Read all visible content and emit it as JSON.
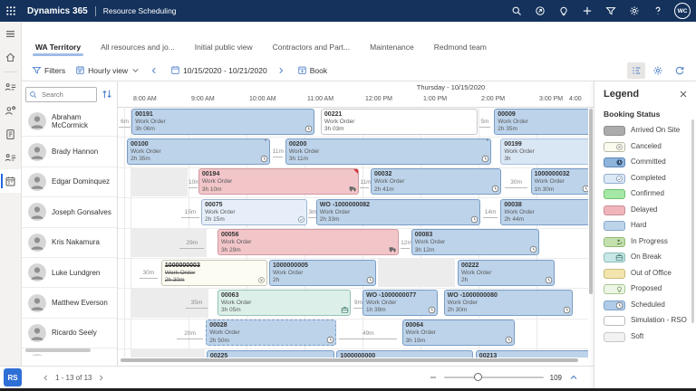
{
  "colors": {
    "topbar_bg": "#14325C",
    "accent_blue": "#4A7EC9",
    "tab_underline": "#9FBCE8",
    "rail_active": "#2266E3",
    "rs_badge_bg": "#2E6FD6",
    "delayed_corner": "#D13438",
    "gridline": "#E9E9E9"
  },
  "topbar": {
    "brand": "Dynamics 365",
    "app": "Resource Scheduling",
    "icons": [
      "search-icon",
      "quick-launch-icon",
      "lightbulb-icon",
      "plus-icon",
      "filter-icon",
      "gear-icon",
      "help-icon"
    ],
    "avatar_initials": "WC"
  },
  "rail": {
    "items": [
      "hamburger-icon",
      "home-icon",
      "divider",
      "resource-requirements-icon",
      "resource-gear-icon",
      "booking-requirements-icon",
      "resources-list-icon",
      "schedule-board-icon"
    ],
    "active": "schedule-board-icon"
  },
  "tabs": [
    {
      "label": "WA Territory",
      "active": true
    },
    {
      "label": "All resources and jo...",
      "active": false
    },
    {
      "label": "Initial public view",
      "active": false
    },
    {
      "label": "Contractors and Part...",
      "active": false
    },
    {
      "label": "Maintenance",
      "active": false
    },
    {
      "label": "Redmond team",
      "active": false
    }
  ],
  "toolbar": {
    "filters_label": "Filters",
    "view_label": "Hourly view",
    "date_range": "10/15/2020 - 10/21/2020",
    "book_label": "Book",
    "right_icons": [
      {
        "name": "board-view-icon",
        "selected": true
      },
      {
        "name": "settings-gear-icon",
        "selected": false
      },
      {
        "name": "refresh-icon",
        "selected": false
      }
    ]
  },
  "resource_panel": {
    "search_placeholder": "Search",
    "resources": [
      "Abraham McCormick",
      "Brady Hannon",
      "Edgar Dominquez",
      "Joseph Gonsalves",
      "Kris Nakamura",
      "Luke Lundgren",
      "Matthew Everson",
      "Ricardo Seely"
    ],
    "partial_row": true
  },
  "booking_colors": {
    "hard": {
      "fill": "#BCD3EA",
      "border": "#7A9DC6"
    },
    "soft": {
      "fill": "#D9E6F4",
      "border": "#A8C0DC"
    },
    "delayed": {
      "fill": "#F2C5C9",
      "border": "#D09AA0"
    },
    "canceled": {
      "fill": "#FDFCF3",
      "border": "#C6C6B6"
    },
    "simulation": {
      "fill": "#FFFFFF",
      "border": "#C2C6CC"
    },
    "onbreak": {
      "fill": "#DCF0E9",
      "border": "#93C4B6"
    },
    "completed": {
      "fill": "#E6EFF9",
      "border": "#9DB4D2"
    },
    "unavailable": {
      "fill": "#ECECEC"
    }
  },
  "schedule": {
    "date_header": "Thursday - 10/15/2020",
    "hours": [
      "8:00 AM",
      "9:00 AM",
      "10:00 AM",
      "11:00 AM",
      "12:00 PM",
      "1:00 PM",
      "2:00 PM",
      "3:00 PM",
      "4:00"
    ],
    "rows": [
      [
        {
          "type": "gap",
          "label": "6m",
          "start": -0.2,
          "length": 0.2
        },
        {
          "type": "booking",
          "id": "00191",
          "label": "Work Order",
          "duration": "3h 06m",
          "status": "hard",
          "start": 0.02,
          "length": 3.15,
          "icon": "clock-icon"
        },
        {
          "type": "booking",
          "id": "00221",
          "label": "Work Order",
          "duration": "3h 03m",
          "status": "simulation",
          "start": 3.28,
          "length": 2.7
        },
        {
          "type": "gap",
          "label": "5m",
          "start": 6.02,
          "length": 0.18
        },
        {
          "type": "booking",
          "id": "00009",
          "label": "Work Order",
          "duration": "2h 35m",
          "status": "hard",
          "start": 6.27,
          "length": 2.55,
          "icon": "clock-icon"
        }
      ],
      [
        {
          "type": "booking",
          "id": "00100",
          "label": "Work Order",
          "duration": "2h 35m",
          "status": "hard",
          "start": -0.06,
          "length": 2.46,
          "icon": "clock-icon",
          "flag": "*"
        },
        {
          "type": "gap",
          "label": "11m",
          "start": 2.45,
          "length": 0.18
        },
        {
          "type": "booking",
          "id": "00200",
          "label": "Work Order",
          "duration": "3h 11m",
          "status": "hard",
          "start": 2.67,
          "length": 3.55,
          "icon": "clock-icon",
          "flag": "*"
        },
        {
          "type": "booking",
          "id": "00199",
          "label": "Work Order",
          "duration": "3h",
          "status": "soft",
          "start": 6.38,
          "length": 2.6
        }
      ],
      [
        {
          "type": "gray",
          "start": 0,
          "length": 0.98
        },
        {
          "type": "gap",
          "label": "10m",
          "start": 1.0,
          "length": 0.15
        },
        {
          "type": "booking",
          "id": "00194",
          "label": "Work Order",
          "duration": "3h 10m",
          "status": "delayed",
          "start": 1.17,
          "length": 2.76,
          "icon": "truck-icon",
          "corner": true
        },
        {
          "type": "gap",
          "label": "11m",
          "start": 3.96,
          "length": 0.15
        },
        {
          "type": "booking",
          "id": "00032",
          "label": "Work Order",
          "duration": "2h 41m",
          "status": "hard",
          "start": 4.14,
          "length": 2.25,
          "icon": "clock-icon"
        },
        {
          "type": "gap",
          "label": "30m",
          "start": 6.45,
          "length": 0.4
        },
        {
          "type": "booking",
          "id": "1000000032",
          "label": "Work Order",
          "duration": "1h 30m",
          "status": "hard",
          "start": 6.9,
          "length": 1.06,
          "icon": "clock-icon"
        }
      ],
      [
        {
          "type": "gap",
          "label": "15m",
          "start": 0.88,
          "length": 0.3
        },
        {
          "type": "booking",
          "id": "00075",
          "label": "Work Order",
          "duration": "2h 15m",
          "status": "completed",
          "start": 1.22,
          "length": 1.82,
          "icon": "check-icon"
        },
        {
          "type": "gap",
          "label": "3m",
          "start": 3.06,
          "length": 0.1
        },
        {
          "type": "booking",
          "id": "WO -1000000082",
          "label": "Work Order",
          "duration": "2h 33m",
          "status": "hard",
          "start": 3.2,
          "length": 2.83,
          "icon": "clock-icon"
        },
        {
          "type": "gap",
          "label": "14m",
          "start": 6.08,
          "length": 0.25
        },
        {
          "type": "booking",
          "id": "00038",
          "label": "Work Order",
          "duration": "2h 44m",
          "status": "hard",
          "start": 6.38,
          "length": 1.6
        }
      ],
      [
        {
          "type": "gray",
          "start": 0,
          "length": 1.32
        },
        {
          "type": "gap",
          "label": "29m",
          "start": 0.85,
          "length": 0.42
        },
        {
          "type": "booking",
          "id": "00056",
          "label": "Work Order",
          "duration": "3h 29m",
          "status": "delayed",
          "start": 1.5,
          "length": 3.12,
          "icon": "truck-icon"
        },
        {
          "type": "gap",
          "label": "12m",
          "start": 4.66,
          "length": 0.15
        },
        {
          "type": "booking",
          "id": "00083",
          "label": "Work Order",
          "duration": "3h 12m",
          "status": "hard",
          "start": 4.84,
          "length": 2.2,
          "icon": "clock-icon"
        }
      ],
      [
        {
          "type": "gap",
          "label": "30m",
          "start": 0.15,
          "length": 0.32
        },
        {
          "type": "booking",
          "id": "1000000003",
          "label": "Work Order",
          "duration": "2h 30m",
          "status": "canceled",
          "start": 0.53,
          "length": 1.83,
          "icon": "cancel-icon",
          "struck": true
        },
        {
          "type": "booking",
          "id": "1000000005",
          "label": "Work Order",
          "duration": "2h",
          "status": "hard",
          "start": 2.39,
          "length": 1.85,
          "icon": "clock-icon"
        },
        {
          "type": "gray",
          "start": 4.27,
          "length": 1.33
        },
        {
          "type": "booking",
          "id": "00222",
          "label": "Work Order",
          "duration": "2h",
          "status": "hard",
          "start": 5.64,
          "length": 1.68,
          "icon": "clock-icon"
        }
      ],
      [
        {
          "type": "gray",
          "start": 0,
          "length": 1.35
        },
        {
          "type": "gap",
          "label": "35m",
          "start": 0.95,
          "length": 0.38
        },
        {
          "type": "booking",
          "id": "00063",
          "label": "Work Order",
          "duration": "3h 05m",
          "status": "onbreak",
          "start": 1.5,
          "length": 2.3,
          "icon": "briefcase-icon"
        },
        {
          "type": "gap",
          "label": "9m",
          "start": 3.85,
          "length": 0.13
        },
        {
          "type": "booking",
          "id": "WO -1000000077",
          "label": "Work Order",
          "duration": "1h 39m",
          "status": "hard",
          "start": 4.0,
          "length": 1.3,
          "icon": "clock-icon"
        },
        {
          "type": "booking",
          "id": "WO -1000000080",
          "label": "Work Order",
          "duration": "2h 30m",
          "status": "hard",
          "start": 5.4,
          "length": 2.22,
          "icon": "clock-icon"
        }
      ],
      [
        {
          "type": "gap",
          "label": "20m",
          "start": 0.8,
          "length": 0.45
        },
        {
          "type": "booking",
          "id": "00028",
          "label": "Work Order",
          "duration": "2h 50m",
          "status": "hard",
          "start": 1.3,
          "length": 2.25,
          "icon": "clock-icon",
          "dashed": true
        },
        {
          "type": "gap",
          "label": "49m",
          "start": 3.6,
          "length": 1.0
        },
        {
          "type": "booking",
          "id": "00064",
          "label": "Work Order",
          "duration": "3h 19m",
          "status": "hard",
          "start": 4.68,
          "length": 1.95,
          "icon": "clock-icon"
        }
      ],
      [
        {
          "type": "gray",
          "start": 0,
          "length": 1.28
        },
        {
          "type": "booking",
          "id": "00225",
          "label": "",
          "duration": "",
          "status": "hard",
          "start": 1.31,
          "length": 2.2
        },
        {
          "type": "booking",
          "id": "1000000000",
          "label": "",
          "duration": "",
          "status": "hard",
          "start": 3.55,
          "length": 2.35
        },
        {
          "type": "booking",
          "id": "00213",
          "label": "",
          "duration": "",
          "status": "hard",
          "start": 5.95,
          "length": 2.0
        }
      ]
    ]
  },
  "legend": {
    "title": "Legend",
    "subtitle": "Booking Status",
    "items": [
      {
        "label": "Arrived On Site",
        "fill": "#ABABAB",
        "border": "#8F8F8F"
      },
      {
        "label": "Canceled",
        "fill": "#FCFBEF",
        "border": "#B9B9A8",
        "icon": "cancel-icon"
      },
      {
        "label": "Committed",
        "fill": "#8FB4DC",
        "border": "#5C87B8",
        "icon": "committed-icon"
      },
      {
        "label": "Completed",
        "fill": "#DCE9F6",
        "border": "#93ADCF",
        "icon": "check-icon"
      },
      {
        "label": "Confirmed",
        "fill": "#A5E8A5",
        "border": "#6FBF6F"
      },
      {
        "label": "Delayed",
        "fill": "#EFB5BA",
        "border": "#C98F96"
      },
      {
        "label": "Hard",
        "fill": "#BCD3EA",
        "border": "#87A7CC"
      },
      {
        "label": "In Progress",
        "fill": "#C4E0AE",
        "border": "#8FBB72",
        "icon": "person-icon"
      },
      {
        "label": "On Break",
        "fill": "#C8E8E8",
        "border": "#88BBBB",
        "icon": "briefcase-icon"
      },
      {
        "label": "Out of Office",
        "fill": "#F2E5AE",
        "border": "#C9BA7A"
      },
      {
        "label": "Proposed",
        "fill": "#EDF6E4",
        "border": "#A8C890",
        "icon": "bulb-icon"
      },
      {
        "label": "Scheduled",
        "fill": "#AFCBE8",
        "border": "#7FA3CC",
        "icon": "clock-icon"
      },
      {
        "label": "Simulation - RSO",
        "fill": "#FFFFFF",
        "border": "#BBBBBB"
      },
      {
        "label": "Soft",
        "fill": "#F2F2F2",
        "border": "#C8C8C8"
      }
    ]
  },
  "statusbar": {
    "rs_badge": "RS",
    "pagination": "1 - 13 of 13",
    "zoom_value": "109"
  }
}
